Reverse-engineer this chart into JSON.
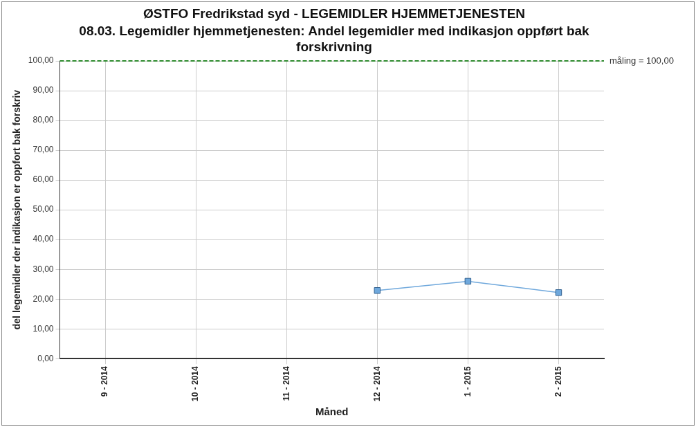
{
  "chart_data": {
    "type": "line",
    "title": "ØSTFO Fredrikstad syd - LEGEMIDLER HJEMMETJENESTEN",
    "subtitle": "08.03. Legemidler hjemmetjenesten: Andel legemidler med indikasjon oppført bak forskrivning",
    "xlabel": "Måned",
    "ylabel": "del legemidler der indikasjon er oppfort bak forskriv",
    "categories": [
      "9 - 2014",
      "10 - 2014",
      "11 - 2014",
      "12 - 2014",
      "1 - 2015",
      "2 - 2015"
    ],
    "series": [
      {
        "color": "#6fa8dc",
        "values": [
          null,
          null,
          null,
          22.9,
          26.0,
          22.2
        ]
      }
    ],
    "ylim": [
      0,
      100
    ],
    "yticks": [
      {
        "value": 0,
        "label": "0,00"
      },
      {
        "value": 10,
        "label": "10,00"
      },
      {
        "value": 20,
        "label": "20,00"
      },
      {
        "value": 30,
        "label": "30,00"
      },
      {
        "value": 40,
        "label": "40,00"
      },
      {
        "value": 50,
        "label": "50,00"
      },
      {
        "value": 60,
        "label": "60,00"
      },
      {
        "value": 70,
        "label": "70,00"
      },
      {
        "value": 80,
        "label": "80,00"
      },
      {
        "value": 90,
        "label": "90,00"
      },
      {
        "value": 100,
        "label": "100,00"
      }
    ],
    "ref_lines": [
      {
        "axis": "y",
        "value": 100,
        "label": "måling = 100,00",
        "color": "#2e8b2e",
        "line_style": "dashed"
      }
    ],
    "grid": true,
    "legend": false,
    "marker": "square",
    "line_style": "solid"
  }
}
